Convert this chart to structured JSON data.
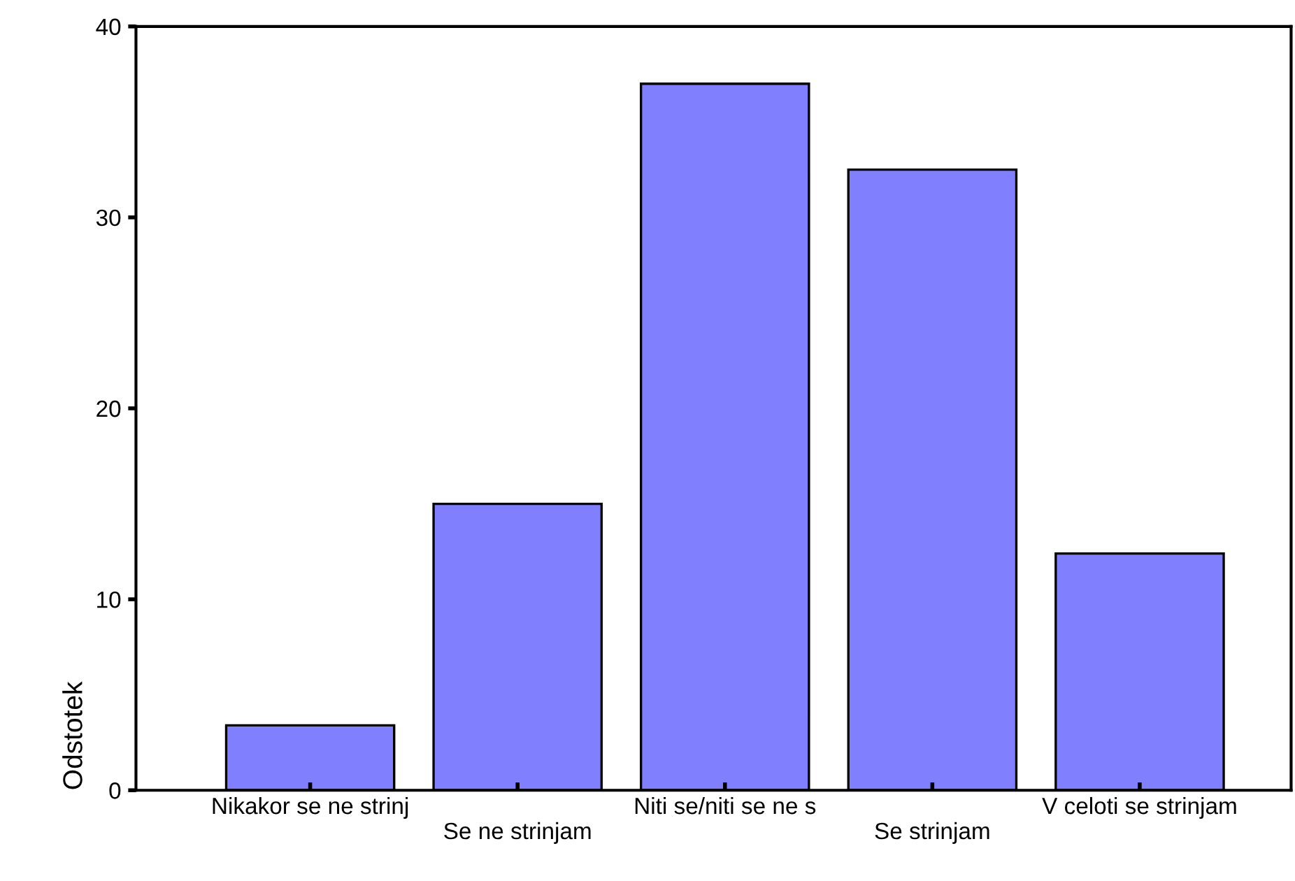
{
  "chart_data": {
    "type": "bar",
    "ylabel": "Odstotek",
    "categories": [
      "Nikakor se ne strinj",
      "Se ne strinjam",
      "Niti se/niti se ne s",
      "Se strinjam",
      "V celoti se strinjam"
    ],
    "values": [
      3.4,
      15.0,
      37.0,
      32.5,
      12.4
    ],
    "color": "#8080ff",
    "ylim": [
      0,
      40
    ],
    "yticks": [
      0,
      10,
      20,
      30,
      40
    ],
    "grid": false
  }
}
